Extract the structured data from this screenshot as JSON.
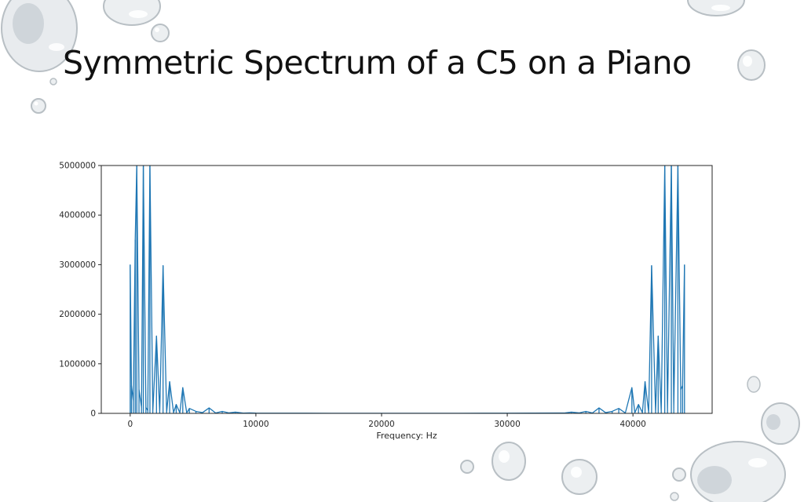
{
  "slide": {
    "title": "Symmetric Spectrum of a C5 on a Piano"
  },
  "colors": {
    "series": "#1f77b4",
    "axis": "#262626",
    "drop_fill": "#eceff1",
    "drop_edge": "#b8bfc4"
  },
  "decorations": {
    "icon": "water-droplet-icon"
  },
  "chart_data": {
    "type": "line",
    "title": "",
    "xlabel": "Frequency: Hz",
    "ylabel": "",
    "xlim": [
      -2300,
      46300
    ],
    "ylim": [
      0,
      5000000
    ],
    "grid": false,
    "legend": "none",
    "x_ticks": [
      0,
      10000,
      20000,
      30000,
      40000
    ],
    "x_tick_labels": [
      "0",
      "10000",
      "20000",
      "30000",
      "40000"
    ],
    "y_ticks": [
      0,
      1000000,
      2000000,
      3000000,
      4000000,
      5000000
    ],
    "y_tick_labels": [
      "0",
      "1000000",
      "2000000",
      "3000000",
      "4000000",
      "5000000"
    ],
    "series": [
      {
        "x": [
          0,
          100,
          250,
          400,
          523,
          700,
          900,
          1046,
          1250,
          1400,
          1569,
          1800,
          2092,
          2350,
          2615,
          2900,
          3138,
          3450,
          3661,
          3950,
          4184,
          4500,
          4707,
          5230,
          5753,
          6276,
          6800,
          7322,
          7845,
          8368,
          9000,
          9500,
          10000,
          12000,
          14000,
          16000,
          18000,
          20000,
          22050,
          24100,
          26100,
          28100,
          30100,
          32100,
          34100,
          34600,
          35100,
          35732,
          36255,
          36778,
          37301,
          37824,
          38347,
          38870,
          39393,
          39916,
          40150,
          40439,
          40750,
          40962,
          41250,
          41485,
          41800,
          42008,
          42250,
          42531,
          42750,
          43054,
          43250,
          43577,
          43800,
          43950,
          44100
        ],
        "y": [
          3000000,
          560000,
          250000,
          3500000,
          5000000,
          480000,
          120000,
          5000000,
          120000,
          60000,
          5000000,
          40000,
          1560000,
          30000,
          2980000,
          20000,
          640000,
          15000,
          180000,
          12000,
          520000,
          8000,
          100000,
          40000,
          15000,
          110000,
          8000,
          40000,
          10000,
          25000,
          6000,
          10000,
          5000,
          4000,
          3000,
          2500,
          2000,
          2000,
          2000,
          2000,
          2500,
          3000,
          4000,
          5000,
          8000,
          10000,
          25000,
          10000,
          40000,
          8000,
          110000,
          15000,
          40000,
          100000,
          8000,
          520000,
          12000,
          180000,
          15000,
          640000,
          20000,
          2980000,
          30000,
          1560000,
          40000,
          5000000,
          60000,
          5000000,
          120000,
          5000000,
          480000,
          560000,
          3000000
        ]
      }
    ]
  }
}
